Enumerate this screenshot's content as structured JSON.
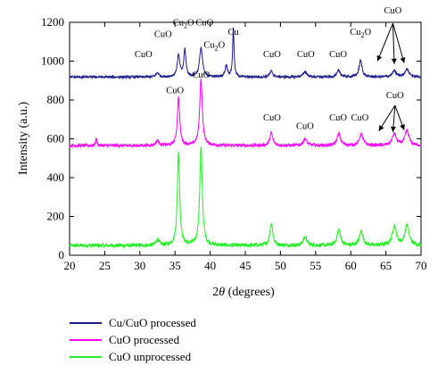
{
  "chart_data": {
    "type": "line",
    "xlabel_prefix": "2",
    "xlabel_theta": "θ",
    "xlabel_suffix": " (degrees)",
    "ylabel": "Intensity (a.u.)",
    "xlim": [
      20,
      70
    ],
    "ylim": [
      0,
      1200
    ],
    "xticks": [
      20,
      25,
      30,
      35,
      40,
      45,
      50,
      55,
      60,
      65,
      70
    ],
    "yticks": [
      0,
      200,
      400,
      600,
      800,
      1000,
      1200
    ],
    "legend_position": "bottom-left, below plot",
    "series": [
      {
        "name": "Cu/CuO processed",
        "color": "#1c1c8c",
        "baseline": 918,
        "noise": 6,
        "peaks": [
          [
            32.5,
            22,
            0.25
          ],
          [
            35.5,
            110,
            0.22
          ],
          [
            36.4,
            140,
            0.18
          ],
          [
            38.7,
            150,
            0.25
          ],
          [
            42.3,
            60,
            0.2
          ],
          [
            43.3,
            255,
            0.12
          ],
          [
            48.7,
            30,
            0.25
          ],
          [
            53.5,
            28,
            0.3
          ],
          [
            58.3,
            32,
            0.3
          ],
          [
            61.4,
            85,
            0.25
          ],
          [
            66.2,
            30,
            0.35
          ],
          [
            68.0,
            40,
            0.35
          ]
        ]
      },
      {
        "name": "CuO processed",
        "color": "#ff00ff",
        "baseline": 565,
        "noise": 8,
        "peaks": [
          [
            23.8,
            40,
            0.1
          ],
          [
            32.5,
            25,
            0.25
          ],
          [
            35.5,
            250,
            0.2
          ],
          [
            38.7,
            345,
            0.22
          ],
          [
            48.7,
            65,
            0.25
          ],
          [
            53.5,
            35,
            0.3
          ],
          [
            58.3,
            60,
            0.3
          ],
          [
            61.5,
            60,
            0.3
          ],
          [
            66.2,
            60,
            0.35
          ],
          [
            68.0,
            75,
            0.35
          ]
        ]
      },
      {
        "name": "CuO unprocessed",
        "color": "#22ee22",
        "baseline": 50,
        "noise": 10,
        "peaks": [
          [
            32.5,
            30,
            0.25
          ],
          [
            35.5,
            480,
            0.2
          ],
          [
            38.7,
            505,
            0.22
          ],
          [
            48.7,
            115,
            0.25
          ],
          [
            53.5,
            45,
            0.3
          ],
          [
            58.3,
            80,
            0.3
          ],
          [
            61.5,
            75,
            0.3
          ],
          [
            66.2,
            100,
            0.35
          ],
          [
            68.0,
            105,
            0.35
          ]
        ]
      }
    ],
    "annotations": [
      {
        "text": "CuO",
        "x": 30.5,
        "y": 1020
      },
      {
        "text": "CuO",
        "x": 33.3,
        "y": 1125
      },
      {
        "text": "Cu2O",
        "x": 36.2,
        "y": 1185
      },
      {
        "text": "CuO",
        "x": 39.2,
        "y": 1185
      },
      {
        "text": "Cu2O",
        "x": 40.6,
        "y": 1070
      },
      {
        "text": "Cu",
        "x": 43.3,
        "y": 1135
      },
      {
        "text": "CuO",
        "x": 48.8,
        "y": 1020
      },
      {
        "text": "CuO",
        "x": 53.6,
        "y": 1020
      },
      {
        "text": "CuO",
        "x": 58.2,
        "y": 1020
      },
      {
        "text": "Cu2O",
        "x": 61.4,
        "y": 1135
      },
      {
        "text": "CuO",
        "x": 66.0,
        "y": 1245
      },
      {
        "text": "CuO",
        "x": 35.0,
        "y": 835
      },
      {
        "text": "CuO",
        "x": 38.7,
        "y": 915
      },
      {
        "text": "CuO",
        "x": 48.8,
        "y": 695
      },
      {
        "text": "CuO",
        "x": 53.5,
        "y": 650
      },
      {
        "text": "CuO",
        "x": 58.2,
        "y": 695
      },
      {
        "text": "CuO",
        "x": 61.3,
        "y": 695
      },
      {
        "text": "CuO",
        "x": 66.3,
        "y": 810
      }
    ],
    "arrow_groups": [
      {
        "from": [
          66.0,
          1195
        ],
        "to": [
          [
            63.8,
            1000
          ],
          [
            66.2,
            985
          ],
          [
            67.6,
            990
          ]
        ]
      },
      {
        "from": [
          66.3,
          772
        ],
        "to": [
          [
            64.0,
            640
          ],
          [
            66.0,
            635
          ],
          [
            67.6,
            645
          ]
        ]
      }
    ]
  }
}
